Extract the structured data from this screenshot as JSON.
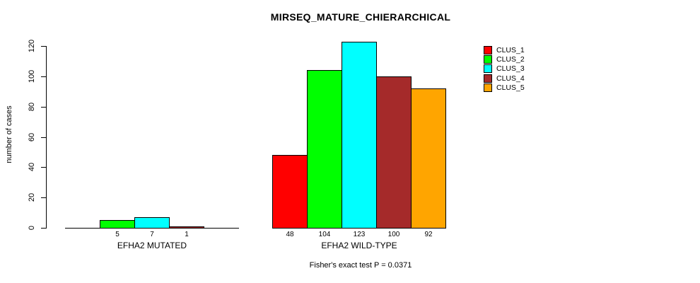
{
  "chart_data": {
    "type": "bar",
    "title": "MIRSEQ_MATURE_CHIERARCHICAL",
    "ylabel": "number of cases",
    "xlabel": "",
    "ylim": [
      0,
      120
    ],
    "yticks": [
      0,
      20,
      40,
      60,
      80,
      100,
      120
    ],
    "grid": false,
    "legend_position": "top-right",
    "series": [
      {
        "name": "CLUS_1",
        "color": "#FF0000"
      },
      {
        "name": "CLUS_2",
        "color": "#00FF00"
      },
      {
        "name": "CLUS_3",
        "color": "#00FFFF"
      },
      {
        "name": "CLUS_4",
        "color": "#A52A2A"
      },
      {
        "name": "CLUS_5",
        "color": "#FFA500"
      }
    ],
    "groups": [
      {
        "label": "EFHA2 MUTATED",
        "values": [
          0,
          5,
          7,
          1,
          0
        ],
        "bar_labels": [
          "",
          "5",
          "7",
          "1",
          ""
        ]
      },
      {
        "label": "EFHA2 WILD-TYPE",
        "values": [
          48,
          104,
          123,
          100,
          92
        ],
        "bar_labels": [
          "48",
          "104",
          "123",
          "100",
          "92"
        ]
      }
    ],
    "annotation": "Fisher's exact test P = 0.0371"
  }
}
